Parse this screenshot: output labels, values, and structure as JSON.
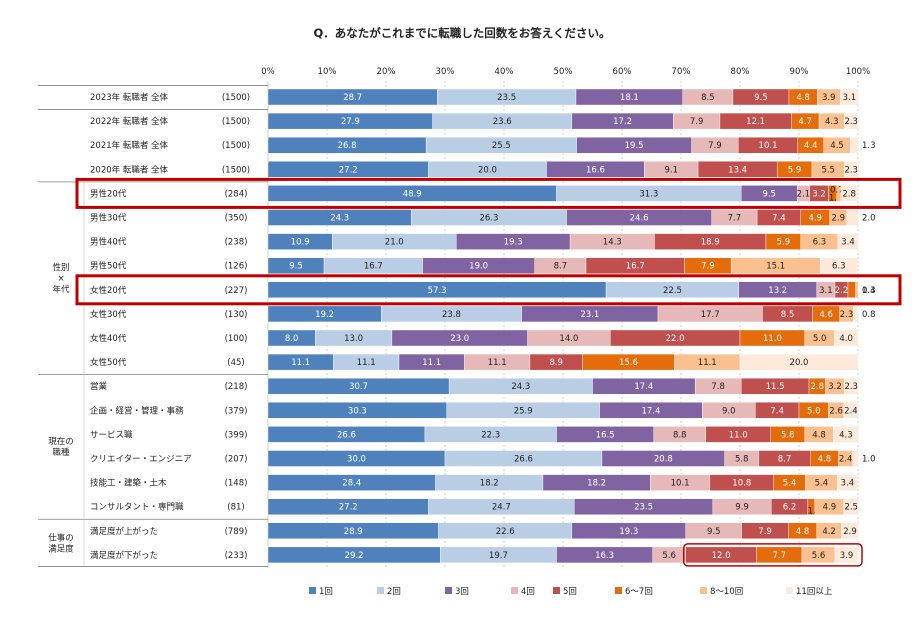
{
  "chart_data": {
    "type": "bar",
    "orientation": "horizontal",
    "stacked": true,
    "title": "Q．あなたがこれまでに転職した回数をお答えください。",
    "xlim": [
      0,
      100
    ],
    "x_ticks": [
      "0%",
      "10%",
      "20%",
      "30%",
      "40%",
      "50%",
      "60%",
      "70%",
      "80%",
      "90%",
      "100%"
    ],
    "grid": true,
    "legend_position": "bottom",
    "series": [
      {
        "name": "1回",
        "color": "#4f81bd"
      },
      {
        "name": "2回",
        "color": "#b9cde5"
      },
      {
        "name": "3回",
        "color": "#8064a2"
      },
      {
        "name": "4回",
        "color": "#e6b9b8"
      },
      {
        "name": "5回",
        "color": "#c0504d"
      },
      {
        "name": "6～7回",
        "color": "#e46c0a"
      },
      {
        "name": "8～10回",
        "color": "#fac090"
      },
      {
        "name": "11回以上",
        "color": "#fdeada"
      }
    ],
    "groups": [
      {
        "label": "",
        "rows": [
          "0"
        ]
      },
      {
        "label": "",
        "rows": [
          "1",
          "2",
          "3"
        ]
      },
      {
        "label": "性別\n×\n年代",
        "rows": [
          "4",
          "5",
          "6",
          "7",
          "8",
          "9",
          "10",
          "11"
        ]
      },
      {
        "label": "現在の\n職種",
        "rows": [
          "12",
          "13",
          "14",
          "15",
          "16",
          "17"
        ]
      },
      {
        "label": "仕事の\n満足度",
        "rows": [
          "18",
          "19"
        ]
      }
    ],
    "rows": [
      {
        "label": "2023年 転職者 全体",
        "n": "(1500)",
        "values": [
          28.7,
          23.5,
          18.1,
          8.5,
          9.5,
          4.8,
          3.9,
          3.1
        ],
        "labels": [
          "28.7",
          "23.5",
          "18.1",
          "8.5",
          "9.5",
          "4.8",
          "3.9",
          "3.1"
        ]
      },
      {
        "label": "2022年 転職者 全体",
        "n": "(1500)",
        "values": [
          27.9,
          23.6,
          17.2,
          7.9,
          12.1,
          4.7,
          4.3,
          2.3
        ],
        "labels": [
          "27.9",
          "23.6",
          "17.2",
          "7.9",
          "12.1",
          "4.7",
          "4.3",
          "2.3"
        ]
      },
      {
        "label": "2021年 転職者 全体",
        "n": "(1500)",
        "values": [
          26.8,
          25.5,
          19.5,
          7.9,
          10.1,
          4.4,
          4.5,
          1.3
        ],
        "labels": [
          "26.8",
          "25.5",
          "19.5",
          "7.9",
          "10.1",
          "4.4",
          "4.5",
          "1.3"
        ]
      },
      {
        "label": "2020年 転職者 全体",
        "n": "(1500)",
        "values": [
          27.2,
          20.0,
          16.6,
          9.1,
          13.4,
          5.9,
          5.5,
          2.3
        ],
        "labels": [
          "27.2",
          "20.0",
          "16.6",
          "9.1",
          "13.4",
          "5.9",
          "5.5",
          "2.3"
        ]
      },
      {
        "label": "男性20代",
        "n": "(284)",
        "values": [
          48.9,
          31.3,
          9.5,
          2.1,
          3.2,
          1.4,
          0.7,
          2.8
        ],
        "labels": [
          "48.9",
          "31.3",
          "9.5",
          "2.1",
          "3.2",
          "1.4",
          "0.7",
          "2.8"
        ]
      },
      {
        "label": "男性30代",
        "n": "(350)",
        "values": [
          24.3,
          26.3,
          24.6,
          7.7,
          7.4,
          4.9,
          2.9,
          2.0
        ],
        "labels": [
          "24.3",
          "26.3",
          "24.6",
          "7.7",
          "7.4",
          "4.9",
          "2.9",
          "2.0"
        ]
      },
      {
        "label": "男性40代",
        "n": "(238)",
        "values": [
          10.9,
          21.0,
          19.3,
          14.3,
          18.9,
          5.9,
          6.3,
          3.4
        ],
        "labels": [
          "10.9",
          "21.0",
          "19.3",
          "14.3",
          "18.9",
          "5.9",
          "6.3",
          "3.4"
        ]
      },
      {
        "label": "男性50代",
        "n": "(126)",
        "values": [
          9.5,
          16.7,
          19.0,
          8.7,
          16.7,
          7.9,
          15.1,
          6.3
        ],
        "labels": [
          "9.5",
          "16.7",
          "19.0",
          "8.7",
          "16.7",
          "7.9",
          "15.1",
          "6.3"
        ]
      },
      {
        "label": "女性20代",
        "n": "(227)",
        "values": [
          57.3,
          22.5,
          13.2,
          3.1,
          2.2,
          1.3,
          0.4,
          0
        ],
        "labels": [
          "57.3",
          "22.5",
          "13.2",
          "3.1",
          "2.2",
          "1.3",
          "0.4",
          ""
        ]
      },
      {
        "label": "女性30代",
        "n": "(130)",
        "values": [
          19.2,
          23.8,
          23.1,
          17.7,
          8.5,
          4.6,
          2.3,
          0.8
        ],
        "labels": [
          "19.2",
          "23.8",
          "23.1",
          "17.7",
          "8.5",
          "4.6",
          "2.3",
          "0.8"
        ]
      },
      {
        "label": "女性40代",
        "n": "(100)",
        "values": [
          8.0,
          13.0,
          23.0,
          14.0,
          22.0,
          11.0,
          5.0,
          4.0
        ],
        "labels": [
          "8.0",
          "13.0",
          "23.0",
          "14.0",
          "22.0",
          "11.0",
          "5.0",
          "4.0"
        ]
      },
      {
        "label": "女性50代",
        "n": "(45)",
        "values": [
          11.1,
          11.1,
          11.1,
          11.1,
          8.9,
          15.6,
          11.1,
          20.0
        ],
        "labels": [
          "11.1",
          "11.1",
          "11.1",
          "11.1",
          "8.9",
          "15.6",
          "11.1",
          "20.0"
        ]
      },
      {
        "label": "営業",
        "n": "(218)",
        "values": [
          30.7,
          24.3,
          17.4,
          7.8,
          11.5,
          2.8,
          3.2,
          2.3
        ],
        "labels": [
          "30.7",
          "24.3",
          "17.4",
          "7.8",
          "11.5",
          "2.8",
          "3.2",
          "2.3"
        ]
      },
      {
        "label": "企画・経営・管理・事務",
        "n": "(379)",
        "values": [
          30.3,
          25.9,
          17.4,
          9.0,
          7.4,
          5.0,
          2.6,
          2.4
        ],
        "labels": [
          "30.3",
          "25.9",
          "17.4",
          "9.0",
          "7.4",
          "5.0",
          "2.6",
          "2.4"
        ]
      },
      {
        "label": "サービス職",
        "n": "(399)",
        "values": [
          26.6,
          22.3,
          16.5,
          8.8,
          11.0,
          5.8,
          4.8,
          4.3
        ],
        "labels": [
          "26.6",
          "22.3",
          "16.5",
          "8.8",
          "11.0",
          "5.8",
          "4.8",
          "4.3"
        ]
      },
      {
        "label": "クリエイター・エンジニア",
        "n": "(207)",
        "values": [
          30.0,
          26.6,
          20.8,
          5.8,
          8.7,
          4.8,
          2.4,
          1.0
        ],
        "labels": [
          "30.0",
          "26.6",
          "20.8",
          "5.8",
          "8.7",
          "4.8",
          "2.4",
          "1.0"
        ]
      },
      {
        "label": "技能工・建築・土木",
        "n": "(148)",
        "values": [
          28.4,
          18.2,
          18.2,
          10.1,
          10.8,
          5.4,
          5.4,
          3.4
        ],
        "labels": [
          "28.4",
          "18.2",
          "18.2",
          "10.1",
          "10.8",
          "5.4",
          "5.4",
          "3.4"
        ]
      },
      {
        "label": "コンサルタント・専門職",
        "n": "(81)",
        "values": [
          27.2,
          24.7,
          23.5,
          9.9,
          6.2,
          1.2,
          4.9,
          2.5
        ],
        "labels": [
          "27.2",
          "24.7",
          "23.5",
          "9.9",
          "6.2",
          "1.2",
          "4.9",
          "2.5"
        ]
      },
      {
        "label": "満足度が上がった",
        "n": "(789)",
        "values": [
          28.9,
          22.6,
          19.3,
          9.5,
          7.9,
          4.8,
          4.2,
          2.9
        ],
        "labels": [
          "28.9",
          "22.6",
          "19.3",
          "9.5",
          "7.9",
          "4.8",
          "4.2",
          "2.9"
        ]
      },
      {
        "label": "満足度が下がった",
        "n": "(233)",
        "values": [
          29.2,
          19.7,
          16.3,
          5.6,
          12.0,
          7.7,
          5.6,
          3.9
        ],
        "labels": [
          "29.2",
          "19.7",
          "16.3",
          "5.6",
          "12.0",
          "7.7",
          "5.6",
          "3.9"
        ]
      }
    ],
    "highlights": [
      {
        "type": "row",
        "row": "4"
      },
      {
        "type": "row",
        "row": "8"
      },
      {
        "type": "segments",
        "row": "19",
        "from_series": "4",
        "to_series": "7"
      }
    ]
  }
}
